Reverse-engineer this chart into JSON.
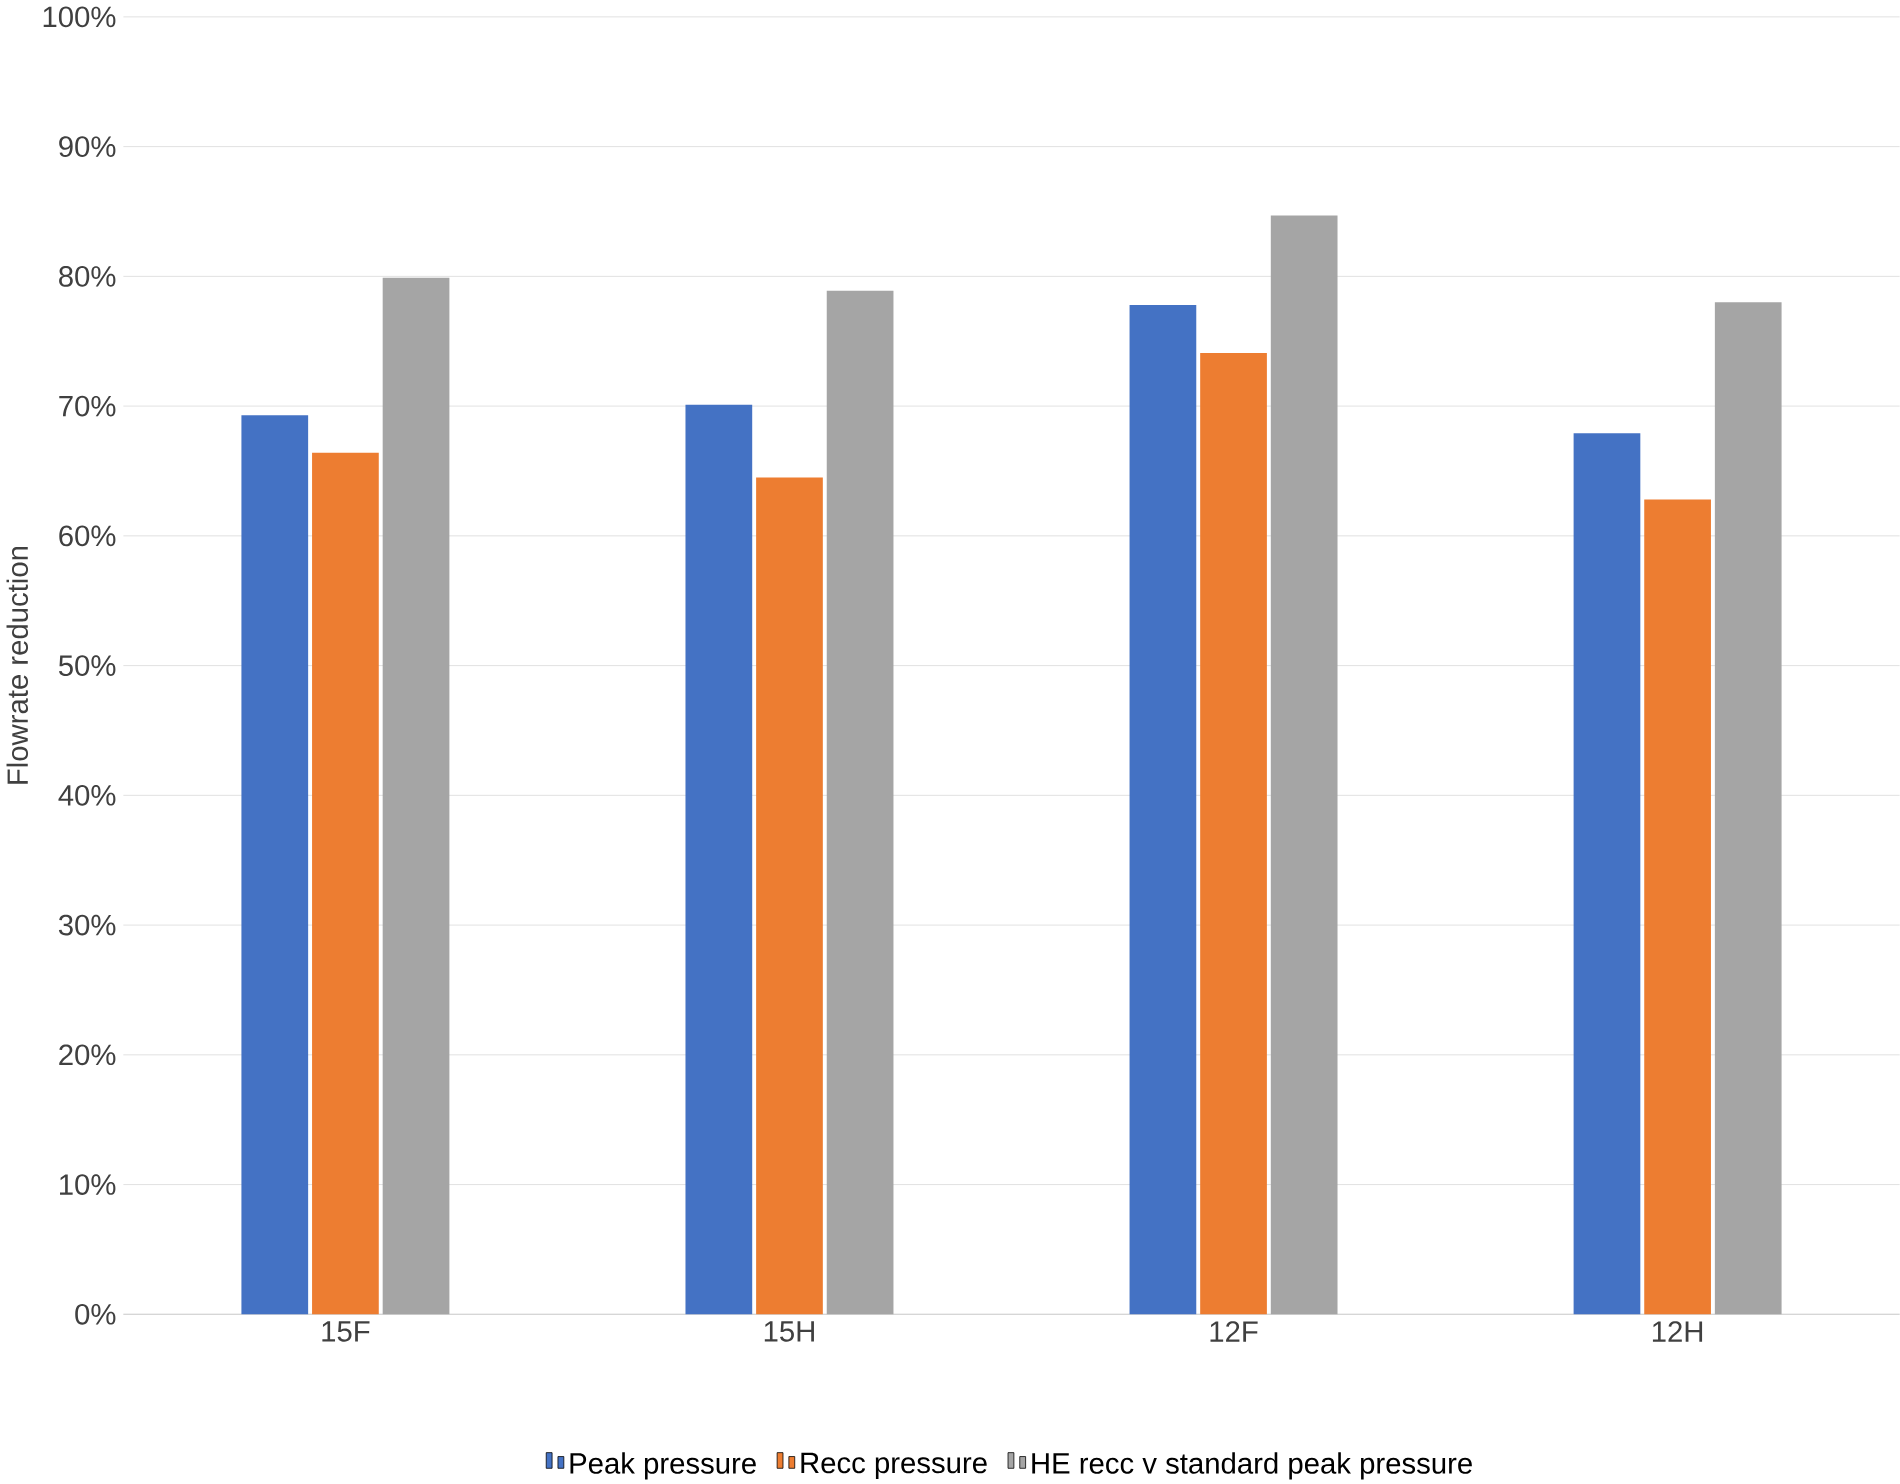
{
  "chart_data": {
    "type": "bar",
    "ylabel": "Flowrate reduction",
    "categories": [
      "15F",
      "15H",
      "12F",
      "12H"
    ],
    "series": [
      {
        "name": "Peak pressure",
        "color": "#4472c4",
        "values": [
          69.3,
          70.1,
          77.8,
          67.9
        ]
      },
      {
        "name": "Recc pressure",
        "color": "#ed7d31",
        "values": [
          66.4,
          64.5,
          74.1,
          62.8
        ]
      },
      {
        "name": "HE recc v standard peak pressure",
        "color": "#a5a5a5",
        "values": [
          79.9,
          78.9,
          84.7,
          78.0
        ]
      }
    ],
    "ylim": [
      0,
      100
    ],
    "yticks": [
      {
        "value": 0,
        "label": "0%"
      },
      {
        "value": 10,
        "label": "10%"
      },
      {
        "value": 20,
        "label": "20%"
      },
      {
        "value": 30,
        "label": "30%"
      },
      {
        "value": 40,
        "label": "40%"
      },
      {
        "value": 50,
        "label": "50%"
      },
      {
        "value": 60,
        "label": "60%"
      },
      {
        "value": 70,
        "label": "70%"
      },
      {
        "value": 80,
        "label": "80%"
      },
      {
        "value": 90,
        "label": "90%"
      },
      {
        "value": 100,
        "label": "100%"
      }
    ],
    "grid": "y",
    "legend": "bottom"
  }
}
